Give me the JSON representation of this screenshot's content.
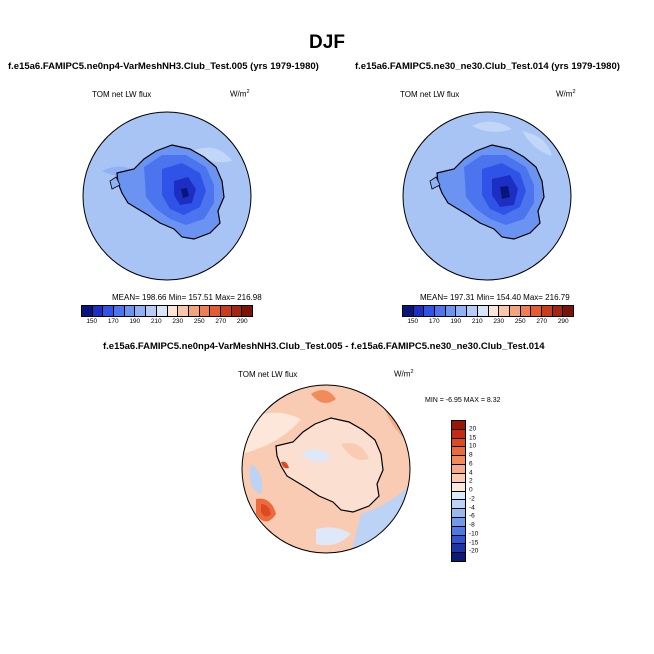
{
  "figure": {
    "title": "DJF"
  },
  "panels": [
    {
      "caption": "f.e15a6.FAMIPC5.ne0np4-VarMeshNH3.Club_Test.005 (yrs 1979-1980)",
      "variable": "TOM net LW flux",
      "units": "W/m",
      "units_sup": "2",
      "stats_text": "MEAN= 198.66   Min= 157.51   Max= 216.98",
      "stats": {
        "mean": 198.66,
        "min": 157.51,
        "max": 216.98
      }
    },
    {
      "caption": "f.e15a6.FAMIPC5.ne30_ne30.Club_Test.014 (yrs 1979-1980)",
      "variable": "TOM net LW flux",
      "units": "W/m",
      "units_sup": "2",
      "stats_text": "MEAN= 197.31   Min= 154.40   Max= 216.79",
      "stats": {
        "mean": 197.31,
        "min": 154.4,
        "max": 216.79
      }
    }
  ],
  "diff_panel": {
    "caption": "f.e15a6.FAMIPC5.ne0np4-VarMeshNH3.Club_Test.005 - f.e15a6.FAMIPC5.ne30_ne30.Club_Test.014",
    "variable": "TOM net LW flux",
    "units": "W/m",
    "units_sup": "2",
    "stats_text": "MIN =  -6.95  MAX =  8.32",
    "stats": {
      "min": -6.95,
      "max": 8.32
    }
  },
  "colorbar_main": {
    "colors": [
      "#08157a",
      "#1c2fc2",
      "#2f53e6",
      "#4b74ee",
      "#6b94f2",
      "#8fb1f5",
      "#b4cdf8",
      "#d6e5fb",
      "#fbe5d8",
      "#f8c6a8",
      "#f4a47c",
      "#ee7f55",
      "#e45a32",
      "#c93c1c",
      "#a32512",
      "#7a1408"
    ],
    "labels": [
      "150",
      "170",
      "190",
      "210",
      "230",
      "250",
      "270",
      "290"
    ]
  },
  "colorbar_diff": {
    "colors": [
      "#a01408",
      "#c42a14",
      "#dd4a22",
      "#ec6a3c",
      "#f28b5c",
      "#f6ab86",
      "#f9cbb2",
      "#fce7da",
      "#dde9f9",
      "#bcd3f5",
      "#97b9f0",
      "#7199ea",
      "#4f79e2",
      "#2f55d2",
      "#1b34a8",
      "#0a1a78"
    ],
    "labels": [
      "20",
      "15",
      "10",
      "8",
      "6",
      "4",
      "2",
      "0",
      "-2",
      "-4",
      "-6",
      "-8",
      "-10",
      "-15",
      "-20"
    ]
  }
}
